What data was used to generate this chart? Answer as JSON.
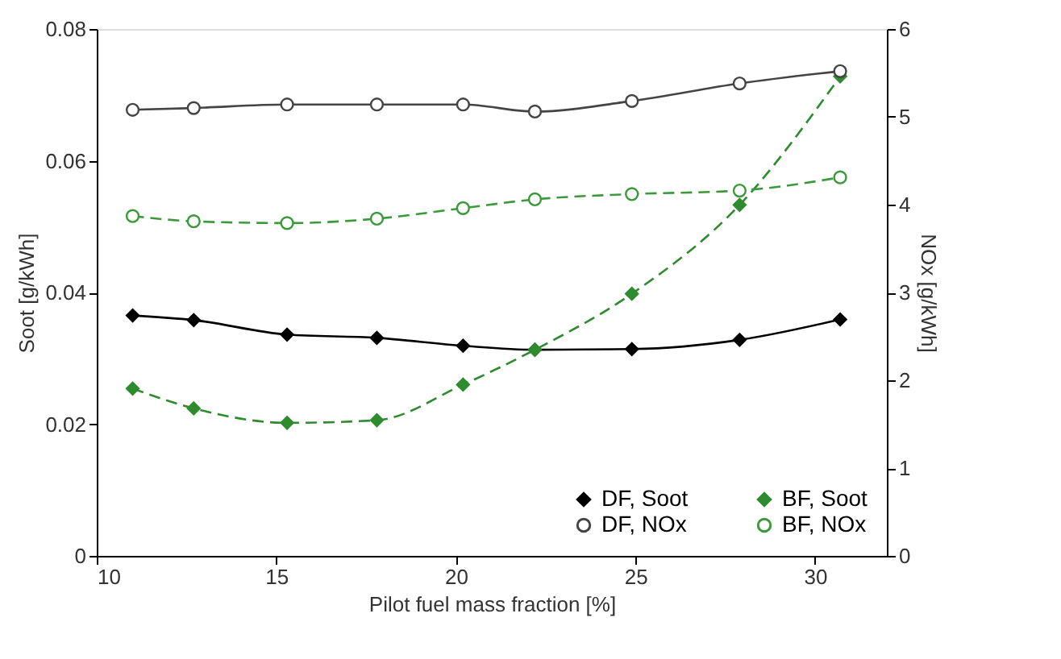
{
  "chart_data": {
    "type": "line",
    "xlabel": "Pilot fuel mass fraction [%]",
    "ylabel": "Soot [g/kWh]",
    "y2label": "NOx [g/kWh]",
    "x": [
      11,
      12.7,
      15.3,
      17.8,
      20.2,
      22.2,
      24.9,
      27.9,
      30.7
    ],
    "series": [
      {
        "name": "DF, Soot",
        "color": "#000000",
        "marker": "diamond",
        "line_style": "solid",
        "values": [
          0.0365,
          0.0358,
          0.0336,
          0.0331,
          0.0319,
          0.0313,
          0.0314,
          0.0328,
          0.0359
        ]
      },
      {
        "name": "BF, Soot",
        "color": "#2e8b2e",
        "marker": "diamond",
        "line_style": "dashed",
        "values": [
          0.0254,
          0.0224,
          0.0202,
          0.0206,
          0.026,
          0.0313,
          0.0398,
          0.0533,
          0.0728
        ]
      },
      {
        "name": "DF, NOx",
        "color": "#444444",
        "marker": "circle",
        "line_style": "solid",
        "axis": "y2",
        "values": [
          5.08,
          5.1,
          5.14,
          5.14,
          5.14,
          5.06,
          5.18,
          5.38,
          5.52
        ]
      },
      {
        "name": "BF, NOx",
        "color": "#3a9a3a",
        "marker": "circle",
        "line_style": "dashed",
        "axis": "y2",
        "values": [
          3.87,
          3.81,
          3.79,
          3.84,
          3.96,
          4.06,
          4.12,
          4.16,
          4.31
        ]
      }
    ],
    "xlim": [
      10,
      32
    ],
    "xticks": [
      10,
      15,
      20,
      25,
      30
    ],
    "ylim": [
      0,
      0.08
    ],
    "yticks": [
      0,
      0.02,
      0.04,
      0.06,
      0.08
    ],
    "y2lim": [
      0,
      6
    ],
    "y2ticks": [
      0,
      1,
      2,
      3,
      4,
      5,
      6
    ],
    "grid": false,
    "legend": "bottom right"
  }
}
